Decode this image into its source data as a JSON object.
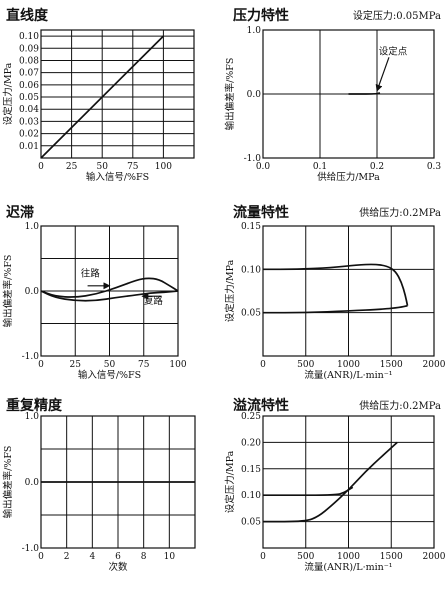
{
  "chart_data": [
    {
      "id": "linearity",
      "type": "line",
      "title": "直线度",
      "note": "",
      "xlabel": "输入信号/%FS",
      "ylabel": "设定压力/MPa",
      "xlim": [
        0,
        125
      ],
      "ylim": [
        0,
        0.105
      ],
      "x_ticks": [
        0,
        25,
        50,
        75,
        100
      ],
      "y_ticks": [
        0.01,
        0.02,
        0.03,
        0.04,
        0.05,
        0.06,
        0.07,
        0.08,
        0.09,
        0.1
      ],
      "x_tick_labels": [
        "0",
        "25",
        "50",
        "75",
        "100"
      ],
      "y_tick_labels": [
        "0.01",
        "0.02",
        "0.03",
        "0.04",
        "0.05",
        "0.06",
        "0.07",
        "0.08",
        "0.09",
        "0.10"
      ],
      "x_grid": [
        0,
        25,
        50,
        75,
        100,
        125
      ],
      "y_grid": [
        0,
        0.01,
        0.02,
        0.03,
        0.04,
        0.05,
        0.06,
        0.07,
        0.08,
        0.09,
        0.1
      ],
      "series": [
        {
          "points": [
            [
              0,
              0
            ],
            [
              100,
              0.1
            ]
          ]
        }
      ],
      "annotations": []
    },
    {
      "id": "pressure-characteristic",
      "type": "line",
      "title": "压力特性",
      "note": "设定压力:0.05MPa",
      "xlabel": "供给压力/MPa",
      "ylabel": "输出偏差率/%FS",
      "xlim": [
        0,
        0.3
      ],
      "ylim": [
        -1.0,
        1.0
      ],
      "x_ticks": [
        0,
        0.1,
        0.2,
        0.3
      ],
      "y_ticks": [
        -1.0,
        0,
        1.0
      ],
      "x_tick_labels": [
        "0.0",
        "0.1",
        "0.2",
        "0.3"
      ],
      "y_tick_labels": [
        "-1.0",
        "0.0",
        "1.0"
      ],
      "x_grid": [
        0,
        0.1,
        0.2,
        0.3
      ],
      "y_grid": [
        -1.0,
        0,
        1.0
      ],
      "series": [
        {
          "points": [
            [
              0.15,
              0
            ],
            [
              0.2,
              0
            ],
            [
              0.205,
              0.02
            ]
          ]
        }
      ],
      "annotations": [
        {
          "text": "设定点",
          "x": 0.228,
          "y": 0.62,
          "arrow_to": [
            0.2,
            0.05
          ]
        }
      ]
    },
    {
      "id": "hysteresis",
      "type": "line",
      "title": "迟滞",
      "note": "",
      "xlabel": "输入信号/%FS",
      "ylabel": "输出偏差率/%FS",
      "xlim": [
        0,
        100
      ],
      "ylim": [
        -1.0,
        1.0
      ],
      "x_ticks": [
        0,
        25,
        50,
        75,
        100
      ],
      "y_ticks": [
        -1.0,
        0,
        1.0
      ],
      "x_tick_labels": [
        "0",
        "25",
        "50",
        "75",
        "100"
      ],
      "y_tick_labels": [
        "-1.0",
        "0.0",
        "1.0"
      ],
      "x_grid": [
        0,
        25,
        50,
        75,
        100
      ],
      "y_grid": [
        -1.0,
        -0.5,
        0,
        0.5,
        1.0
      ],
      "series": [
        {
          "points": [
            [
              0,
              0
            ],
            [
              10,
              -0.08
            ],
            [
              25,
              -0.1
            ],
            [
              40,
              -0.05
            ],
            [
              55,
              0.05
            ],
            [
              70,
              0.17
            ],
            [
              78,
              0.2
            ],
            [
              86,
              0.18
            ],
            [
              94,
              0.08
            ],
            [
              100,
              0
            ]
          ]
        },
        {
          "points": [
            [
              0,
              0
            ],
            [
              10,
              -0.1
            ],
            [
              25,
              -0.15
            ],
            [
              40,
              -0.15
            ],
            [
              55,
              -0.1
            ],
            [
              70,
              -0.06
            ],
            [
              80,
              -0.03
            ],
            [
              90,
              -0.02
            ],
            [
              100,
              0
            ]
          ]
        }
      ],
      "annotations": [
        {
          "text": "往路",
          "x": 36,
          "y": 0.22,
          "arrow_from": [
            34,
            0.08
          ],
          "arrow_to": [
            50,
            0.08
          ]
        },
        {
          "text": "复路",
          "x": 82,
          "y": -0.2,
          "arrow_from": [
            88,
            -0.08
          ],
          "arrow_to": [
            74,
            -0.08
          ]
        }
      ]
    },
    {
      "id": "flow-characteristic",
      "type": "line",
      "title": "流量特性",
      "note": "供给压力:0.2MPa",
      "xlabel": "流量(ANR)/L·min⁻¹",
      "ylabel": "设定压力/MPa",
      "xlim": [
        0,
        2000
      ],
      "ylim": [
        0,
        0.15
      ],
      "x_ticks": [
        0,
        500,
        1000,
        1500,
        2000
      ],
      "y_ticks": [
        0.05,
        0.1,
        0.15
      ],
      "x_tick_labels": [
        "0",
        "500",
        "1000",
        "1500",
        "2000"
      ],
      "y_tick_labels": [
        "0.05",
        "0.10",
        "0.15"
      ],
      "x_grid": [
        0,
        500,
        1000,
        1500,
        2000
      ],
      "y_grid": [
        0,
        0.05,
        0.1,
        0.15
      ],
      "series": [
        {
          "points": [
            [
              0,
              0.1
            ],
            [
              400,
              0.1
            ],
            [
              800,
              0.102
            ],
            [
              1100,
              0.105
            ],
            [
              1300,
              0.106
            ],
            [
              1450,
              0.104
            ],
            [
              1550,
              0.098
            ],
            [
              1620,
              0.085
            ],
            [
              1665,
              0.07
            ],
            [
              1690,
              0.058
            ]
          ]
        },
        {
          "points": [
            [
              0,
              0.05
            ],
            [
              500,
              0.05
            ],
            [
              1000,
              0.052
            ],
            [
              1400,
              0.054
            ],
            [
              1600,
              0.056
            ],
            [
              1690,
              0.058
            ]
          ]
        }
      ],
      "annotations": []
    },
    {
      "id": "repeatability",
      "type": "line",
      "title": "重复精度",
      "note": "",
      "xlabel": "次数",
      "ylabel": "输出偏差率/%FS",
      "xlim": [
        0,
        12
      ],
      "ylim": [
        -1.0,
        1.0
      ],
      "x_ticks": [
        0,
        2,
        4,
        6,
        8,
        10
      ],
      "y_ticks": [
        -1.0,
        0,
        1.0
      ],
      "x_tick_labels": [
        "0",
        "2",
        "4",
        "6",
        "8",
        "10"
      ],
      "y_tick_labels": [
        "-1.0",
        "0.0",
        "1.0"
      ],
      "x_grid": [
        0,
        2,
        4,
        6,
        8,
        10,
        12
      ],
      "y_grid": [
        -1.0,
        -0.5,
        0,
        0.5,
        1.0
      ],
      "series": [
        {
          "points": [
            [
              0,
              0
            ],
            [
              12,
              0
            ]
          ]
        }
      ],
      "annotations": []
    },
    {
      "id": "relief-characteristic",
      "type": "line",
      "title": "溢流特性",
      "note": "供给压力:0.2MPa",
      "xlabel": "流量(ANR)/L·min⁻¹",
      "ylabel": "设定压力/MPa",
      "xlim": [
        0,
        2000
      ],
      "ylim": [
        0,
        0.25
      ],
      "x_ticks": [
        0,
        500,
        1000,
        1500,
        2000
      ],
      "y_ticks": [
        0.05,
        0.1,
        0.15,
        0.2,
        0.25
      ],
      "x_tick_labels": [
        "0",
        "500",
        "1000",
        "1500",
        "2000"
      ],
      "y_tick_labels": [
        "0.05",
        "0.10",
        "0.15",
        "0.20",
        "0.25"
      ],
      "x_grid": [
        0,
        500,
        1000,
        1500,
        2000
      ],
      "y_grid": [
        0,
        0.05,
        0.1,
        0.15,
        0.2,
        0.25
      ],
      "series": [
        {
          "points": [
            [
              0,
              0.1
            ],
            [
              850,
              0.1
            ],
            [
              950,
              0.105
            ],
            [
              1050,
              0.115
            ]
          ]
        },
        {
          "points": [
            [
              0,
              0.05
            ],
            [
              500,
              0.05
            ],
            [
              650,
              0.06
            ],
            [
              800,
              0.08
            ],
            [
              1000,
              0.11
            ],
            [
              1200,
              0.145
            ],
            [
              1400,
              0.175
            ],
            [
              1570,
              0.2
            ]
          ]
        }
      ],
      "annotations": []
    }
  ]
}
